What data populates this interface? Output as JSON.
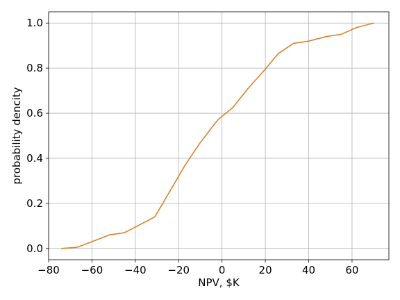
{
  "chart_data": {
    "type": "line",
    "title": "",
    "xlabel": "NPV, $K",
    "ylabel": "probability dencity",
    "xlim": [
      -80,
      77
    ],
    "ylim": [
      -0.05,
      1.05
    ],
    "xticks": [
      -80,
      -60,
      -40,
      -20,
      0,
      20,
      40,
      60
    ],
    "xtick_labels": [
      "−80",
      "−60",
      "−40",
      "−20",
      "0",
      "20",
      "40",
      "60"
    ],
    "yticks": [
      0.0,
      0.2,
      0.4,
      0.6,
      0.8,
      1.0
    ],
    "ytick_labels": [
      "0.0",
      "0.2",
      "0.4",
      "0.6",
      "0.8",
      "1.0"
    ],
    "grid": true,
    "series": [
      {
        "name": "",
        "color": "#d9822b",
        "x": [
          -74,
          -67,
          -60,
          -52,
          -45,
          -38,
          -31,
          -24,
          -17,
          -10,
          -2,
          5,
          12,
          19,
          26,
          33,
          40,
          48,
          55,
          62,
          70
        ],
        "y": [
          0.0,
          0.005,
          0.03,
          0.06,
          0.07,
          0.105,
          0.14,
          0.255,
          0.37,
          0.47,
          0.57,
          0.625,
          0.71,
          0.785,
          0.865,
          0.91,
          0.92,
          0.94,
          0.95,
          0.98,
          1.0
        ]
      }
    ]
  }
}
